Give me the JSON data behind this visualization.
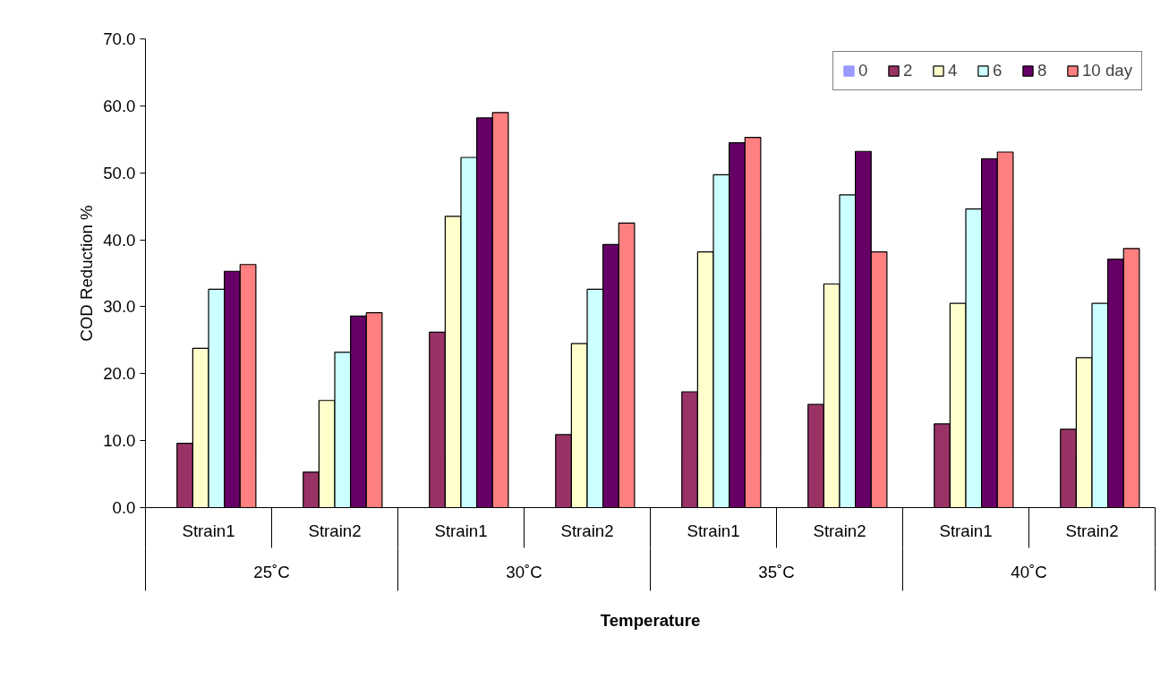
{
  "chart_data": {
    "type": "bar",
    "ylabel": "COD Reduction %",
    "xlabel": "Temperature",
    "categories": [
      "Strain1",
      "Strain2",
      "Strain1",
      "Strain2",
      "Strain1",
      "Strain2",
      "Strain1",
      "Strain2"
    ],
    "annotations": [
      "25˚C",
      "30˚C",
      "35˚C",
      "40˚C"
    ],
    "series": [
      {
        "name": "0",
        "color": "#9999ff",
        "values": [
          0,
          0,
          0,
          0,
          0,
          0,
          0,
          0
        ]
      },
      {
        "name": "2",
        "color": "#993366",
        "values": [
          9.6,
          5.3,
          26.2,
          10.9,
          17.3,
          15.4,
          12.5,
          11.7
        ]
      },
      {
        "name": "4",
        "color": "#ffffcc",
        "values": [
          23.8,
          16.0,
          43.5,
          24.5,
          38.2,
          33.4,
          30.5,
          22.4
        ]
      },
      {
        "name": "6",
        "color": "#ccffff",
        "values": [
          32.6,
          23.2,
          52.3,
          32.6,
          49.7,
          46.7,
          44.6,
          30.5
        ]
      },
      {
        "name": "8",
        "color": "#660066",
        "values": [
          35.3,
          28.6,
          58.2,
          39.3,
          54.5,
          53.2,
          52.1,
          37.1
        ]
      },
      {
        "name": "10 day",
        "color": "#ff8080",
        "values": [
          36.3,
          29.1,
          59.0,
          42.5,
          55.3,
          38.2,
          53.1,
          38.7
        ]
      }
    ],
    "ylim": [
      0,
      70
    ],
    "yticks": [
      {
        "value": 0,
        "label": "0.0"
      },
      {
        "value": 10,
        "label": "10.0"
      },
      {
        "value": 20,
        "label": "20.0"
      },
      {
        "value": 30,
        "label": "30.0"
      },
      {
        "value": 40,
        "label": "40.0"
      },
      {
        "value": 50,
        "label": "50.0"
      },
      {
        "value": 60,
        "label": "60.0"
      },
      {
        "value": 70,
        "label": "70.0"
      }
    ],
    "grid": false,
    "legend": "top right"
  }
}
